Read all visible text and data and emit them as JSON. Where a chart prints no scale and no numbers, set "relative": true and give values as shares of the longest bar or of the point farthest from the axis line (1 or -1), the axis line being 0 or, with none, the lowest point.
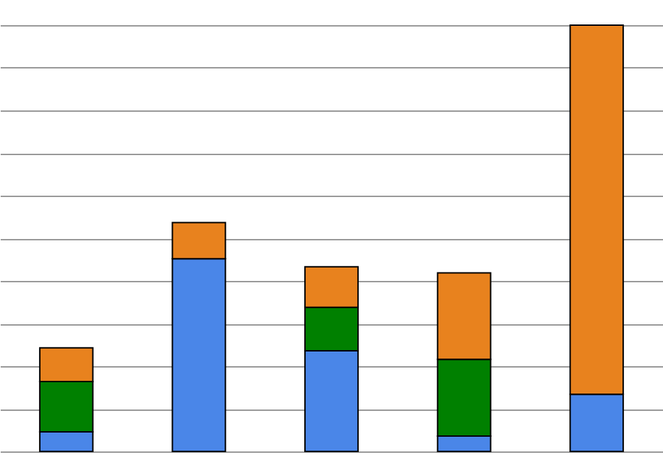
{
  "chart_data": {
    "type": "bar",
    "relative": true,
    "stacked": true,
    "grid": "y",
    "categories": [
      null,
      null,
      null,
      null,
      null
    ],
    "series": [
      {
        "color": "#4a86e8",
        "values": [
          0.046,
          0.452,
          0.236,
          0.036,
          0.134
        ]
      },
      {
        "color": "#008000",
        "values": [
          0.118,
          null,
          0.102,
          0.18,
          null
        ]
      },
      {
        "color": "#e8821e",
        "values": [
          0.079,
          0.085,
          0.095,
          0.203,
          0.866
        ]
      }
    ]
  }
}
